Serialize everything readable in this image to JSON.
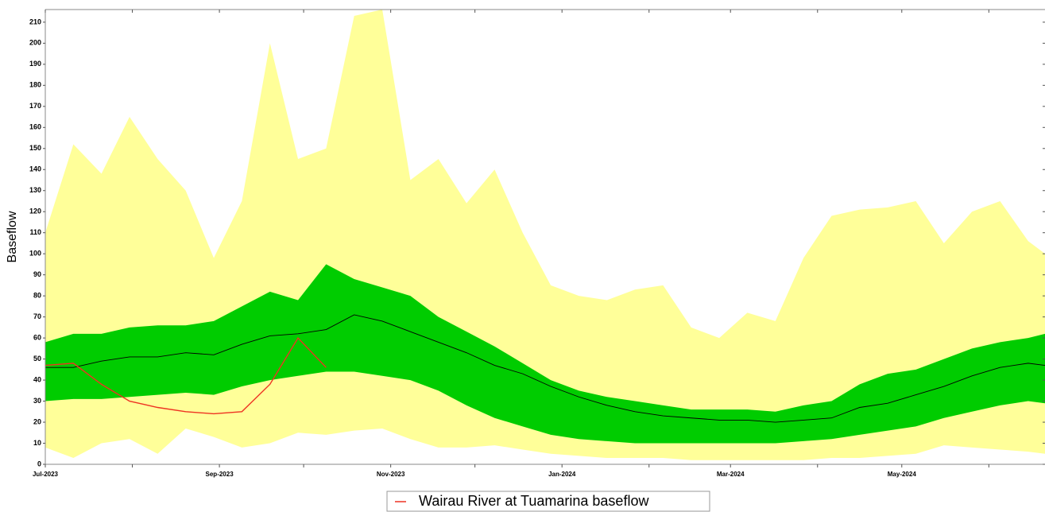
{
  "chart_data": {
    "type": "band_line",
    "y_label": "Baseflow",
    "x": [
      0,
      10,
      20,
      30,
      40,
      50,
      60,
      70,
      80,
      90,
      100,
      110,
      120,
      130,
      140,
      150,
      160,
      170,
      180,
      190,
      200,
      210,
      220,
      230,
      240,
      250,
      260,
      270,
      280,
      290,
      300,
      310,
      320,
      330,
      340,
      350,
      356
    ],
    "xlim": [
      0,
      356
    ],
    "xticks": [
      {
        "value": 0,
        "label": "Jul-2023"
      },
      {
        "value": 62,
        "label": "Sep-2023"
      },
      {
        "value": 123,
        "label": "Nov-2023"
      },
      {
        "value": 184,
        "label": "Jan-2024"
      },
      {
        "value": 244,
        "label": "Mar-2024"
      },
      {
        "value": 305,
        "label": "May-2024"
      }
    ],
    "xminorticks": [
      31,
      92,
      153,
      215,
      275,
      336
    ],
    "ylim": [
      0,
      216
    ],
    "yticks": [
      0,
      10,
      20,
      30,
      40,
      50,
      60,
      70,
      80,
      90,
      100,
      110,
      120,
      130,
      140,
      150,
      160,
      170,
      180,
      190,
      200,
      210
    ],
    "bands": [
      {
        "color": "#ffff99",
        "upper": [
          110,
          152,
          138,
          165,
          145,
          130,
          98,
          125,
          200,
          145,
          150,
          213,
          216,
          135,
          145,
          124,
          140,
          110,
          85,
          80,
          78,
          83,
          85,
          65,
          60,
          72,
          68,
          98,
          118,
          121,
          122,
          125,
          105,
          120,
          125,
          106,
          100
        ],
        "lower": [
          8,
          3,
          10,
          12,
          5,
          17,
          13,
          8,
          10,
          15,
          14,
          16,
          17,
          12,
          8,
          8,
          9,
          7,
          5,
          4,
          3,
          3,
          3,
          2,
          2,
          2,
          2,
          2,
          3,
          3,
          4,
          5,
          9,
          8,
          7,
          6,
          5
        ]
      },
      {
        "color": "#00cc00",
        "upper": [
          58,
          62,
          62,
          65,
          66,
          66,
          68,
          75,
          82,
          78,
          95,
          88,
          84,
          80,
          70,
          63,
          56,
          48,
          40,
          35,
          32,
          30,
          28,
          26,
          26,
          26,
          25,
          28,
          30,
          38,
          43,
          45,
          50,
          55,
          58,
          60,
          62
        ],
        "lower": [
          30,
          31,
          31,
          32,
          33,
          34,
          33,
          37,
          40,
          42,
          44,
          44,
          42,
          40,
          35,
          28,
          22,
          18,
          14,
          12,
          11,
          10,
          10,
          10,
          10,
          10,
          10,
          11,
          12,
          14,
          16,
          18,
          22,
          25,
          28,
          30,
          29
        ]
      }
    ],
    "series": [
      {
        "color": "#000000",
        "values": [
          46,
          46,
          49,
          51,
          51,
          53,
          52,
          57,
          61,
          62,
          64,
          71,
          68,
          63,
          58,
          53,
          47,
          43,
          37,
          32,
          28,
          25,
          23,
          22,
          21,
          21,
          20,
          21,
          22,
          27,
          29,
          33,
          37,
          42,
          46,
          48,
          47
        ]
      },
      {
        "name": "Wairau River at Tuamarina baseflow",
        "color": "#ee3322",
        "values": [
          47,
          48,
          38,
          30,
          27,
          25,
          24,
          25,
          38,
          60,
          46,
          null,
          null,
          null,
          null,
          null,
          null,
          null,
          null,
          null,
          null,
          null,
          null,
          null,
          null,
          null,
          null,
          null,
          null,
          null,
          null,
          null,
          null,
          null,
          null,
          null,
          null
        ]
      }
    ]
  }
}
